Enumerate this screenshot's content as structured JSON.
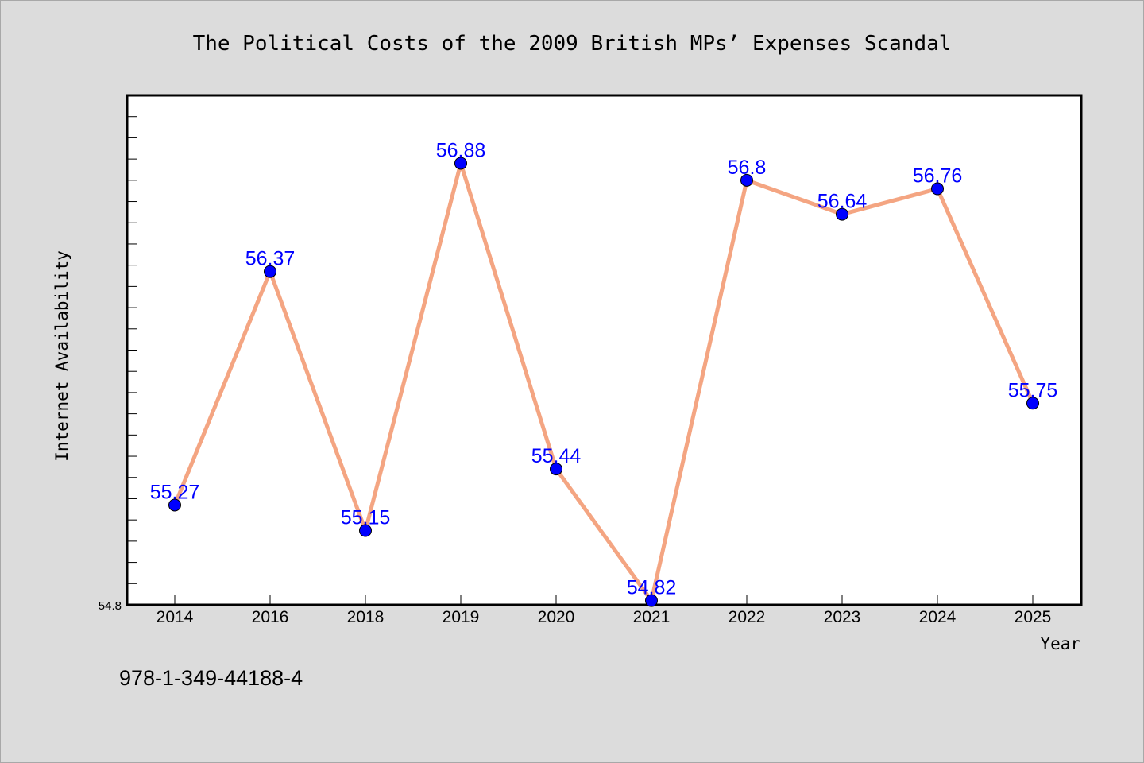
{
  "chart_data": {
    "type": "line",
    "title": "The Political Costs of the 2009 British MPs’ Expenses Scandal",
    "xlabel": "Year",
    "ylabel": "Internet Availability",
    "categories": [
      "2014",
      "2016",
      "2018",
      "2019",
      "2020",
      "2021",
      "2022",
      "2023",
      "2024",
      "2025"
    ],
    "series": [
      {
        "values": [
          55.27,
          56.37,
          55.15,
          56.88,
          55.44,
          54.82,
          56.8,
          56.64,
          56.76,
          55.75
        ],
        "labels": [
          "55.27",
          "56.37",
          "55.15",
          "56.88",
          "55.44",
          "54.82",
          "56.8",
          "56.64",
          "56.76",
          "55.75"
        ]
      }
    ],
    "ylim": [
      54.8,
      57.2
    ],
    "y_tick_label": "54.8",
    "line_color": "#f4a582",
    "marker_color": "#0000ff",
    "label_color": "#0000ff",
    "grid": false
  },
  "caption": "978-1-349-44188-4"
}
